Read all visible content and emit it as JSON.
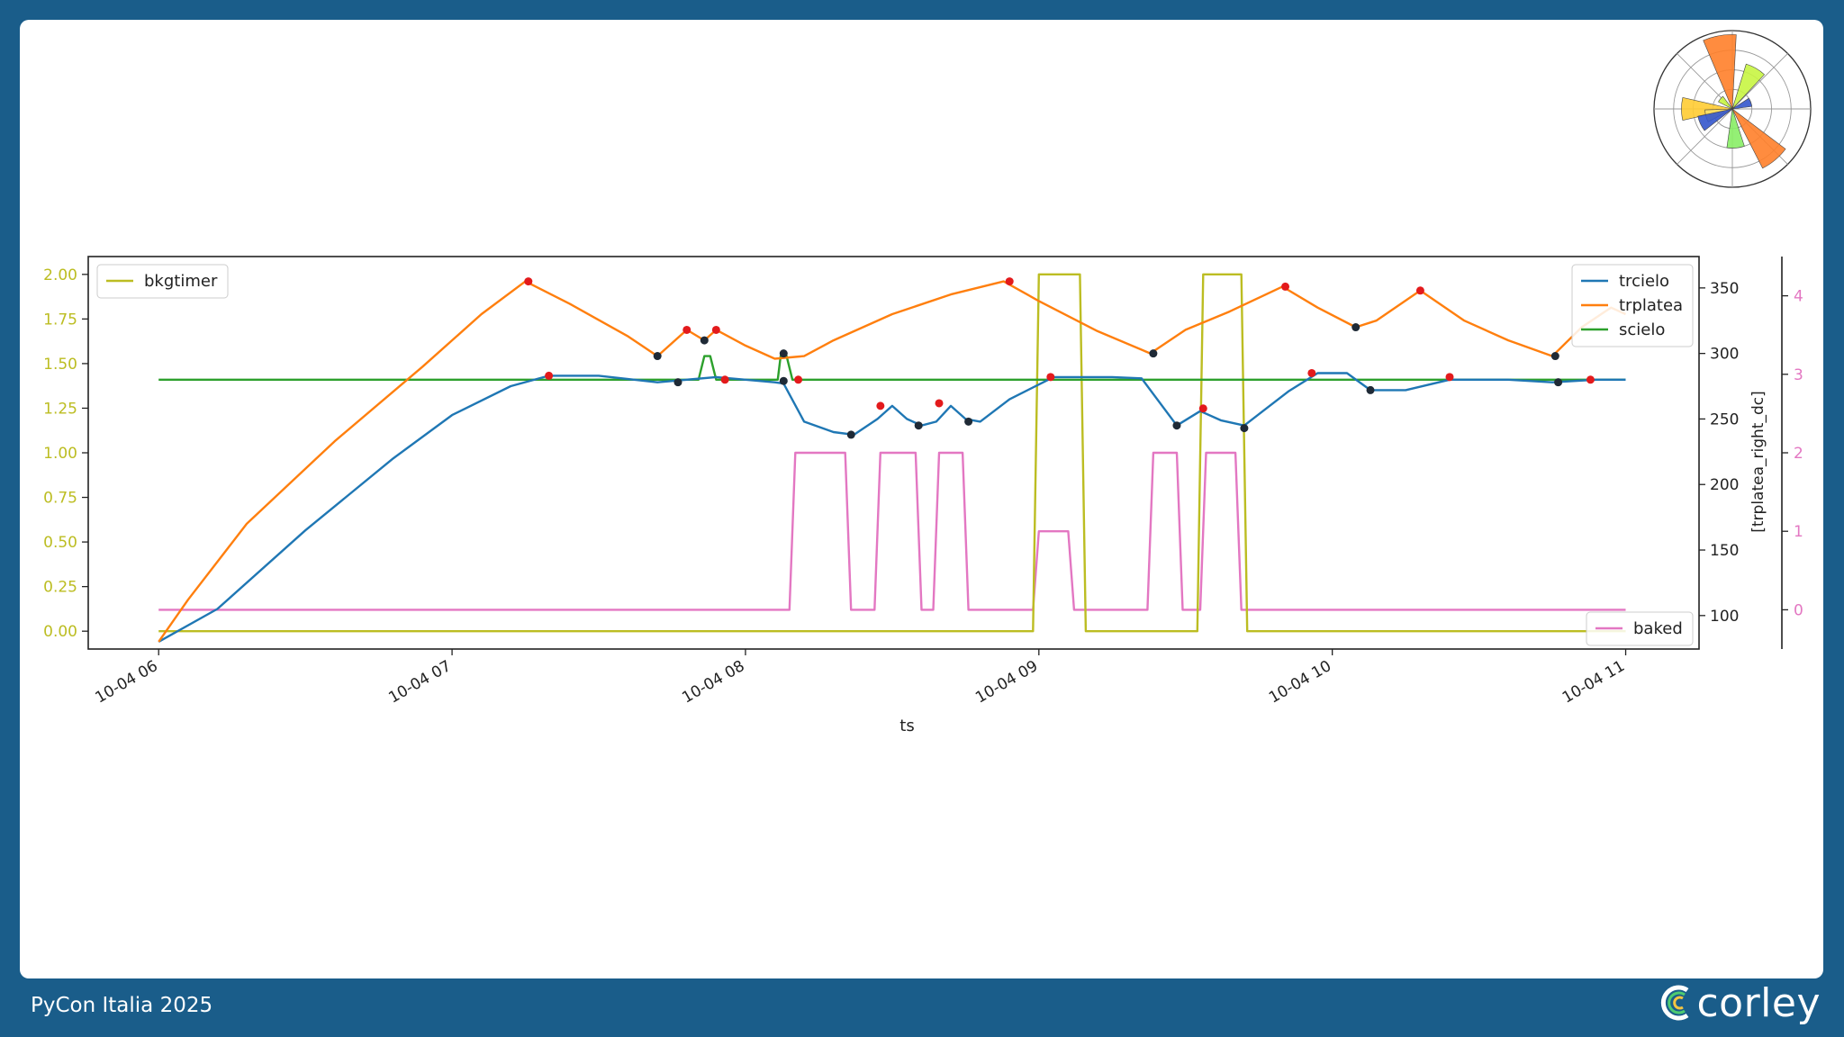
{
  "footer": {
    "event": "PyCon Italia 2025",
    "brand": "corley"
  },
  "colors": {
    "trcielo": "#1f77b4",
    "trplatea": "#ff7f0e",
    "scielo": "#2ca02c",
    "bkgtimer": "#bcbd22",
    "baked": "#e377c2",
    "peak": "#e31a1c",
    "trough": "#1f2a36",
    "background": "#1a5d8a"
  },
  "chart_data": [
    {
      "type": "line",
      "title": "",
      "xlabel": "ts",
      "x_ticks": [
        "10-04 06",
        "10-04 07",
        "10-04 08",
        "10-04 09",
        "10-04 10",
        "10-04 11"
      ],
      "x_range_hours": [
        5.76,
        11.25
      ],
      "axes": {
        "left": {
          "label": "",
          "ylim": [
            -0.1,
            2.1
          ],
          "ticks": [
            "0.00",
            "0.25",
            "0.50",
            "0.75",
            "1.00",
            "1.25",
            "1.50",
            "1.75",
            "2.00"
          ],
          "color": "#bcbd22"
        },
        "right1": {
          "label": "[trplatea_right_dc]",
          "ylim": [
            74.46,
            373.94
          ],
          "ticks": [
            "100",
            "150",
            "200",
            "250",
            "300",
            "350"
          ],
          "color": "#222222"
        },
        "right2": {
          "label": "",
          "ylim": [
            -0.5,
            4.5
          ],
          "ticks": [
            "0",
            "1",
            "2",
            "3",
            "4"
          ],
          "color": "#e377c2"
        }
      },
      "legends": [
        {
          "placement": "upper-left",
          "entries": [
            "bkgtimer"
          ]
        },
        {
          "placement": "upper-right",
          "entries": [
            "trcielo",
            "trplatea",
            "scielo"
          ]
        },
        {
          "placement": "lower-right",
          "entries": [
            "baked"
          ]
        }
      ],
      "series": [
        {
          "name": "trplatea",
          "axis": "right1",
          "color": "#ff7f0e",
          "x": [
            6.0,
            6.1,
            6.3,
            6.6,
            6.9,
            7.1,
            7.25,
            7.4,
            7.6,
            7.7,
            7.8,
            7.86,
            7.9,
            8.0,
            8.1,
            8.2,
            8.3,
            8.5,
            8.7,
            8.88,
            9.0,
            9.2,
            9.38,
            9.5,
            9.65,
            9.83,
            9.95,
            10.08,
            10.15,
            10.3,
            10.45,
            10.6,
            10.75,
            10.85,
            10.95,
            11.0
          ],
          "y": [
            80,
            112,
            170,
            233,
            290,
            330,
            355,
            338,
            313,
            298,
            318,
            310,
            318,
            306,
            296,
            298,
            310,
            330,
            345,
            355,
            340,
            317,
            300,
            318,
            332,
            351,
            335,
            320,
            325,
            348,
            325,
            310,
            298,
            320,
            335,
            330
          ]
        },
        {
          "name": "trcielo",
          "axis": "right1",
          "color": "#1f77b4",
          "x": [
            6.0,
            6.2,
            6.5,
            6.8,
            7.0,
            7.2,
            7.33,
            7.5,
            7.7,
            7.9,
            8.1,
            8.13,
            8.2,
            8.3,
            8.37,
            8.45,
            8.5,
            8.55,
            8.6,
            8.65,
            8.7,
            8.75,
            8.8,
            8.9,
            9.05,
            9.25,
            9.35,
            9.47,
            9.55,
            9.62,
            9.7,
            9.85,
            9.95,
            10.05,
            10.13,
            10.25,
            10.4,
            10.6,
            10.75,
            10.9,
            11.0
          ],
          "y": [
            80,
            105,
            165,
            220,
            253,
            275,
            283,
            283,
            278,
            282,
            278,
            277,
            248,
            240,
            238,
            250,
            260,
            250,
            245,
            248,
            260,
            250,
            248,
            265,
            282,
            282,
            281,
            245,
            256,
            249,
            245,
            271,
            285,
            285,
            272,
            272,
            280,
            280,
            278,
            280,
            280
          ]
        },
        {
          "name": "scielo",
          "axis": "right1",
          "color": "#2ca02c",
          "x": [
            6.0,
            7.84,
            7.86,
            7.88,
            7.9,
            8.11,
            8.12,
            8.14,
            8.16,
            11.0
          ],
          "y": [
            280,
            280,
            298,
            298,
            280,
            280,
            298,
            298,
            280,
            280
          ]
        },
        {
          "name": "bkgtimer",
          "axis": "left",
          "color": "#bcbd22",
          "x": [
            6.0,
            8.98,
            9.0,
            9.14,
            9.16,
            9.54,
            9.56,
            9.69,
            9.71,
            11.0
          ],
          "y": [
            0,
            0,
            2,
            2,
            0,
            0,
            2,
            2,
            0,
            0
          ]
        },
        {
          "name": "baked",
          "axis": "right2",
          "color": "#e377c2",
          "x": [
            6.0,
            8.15,
            8.17,
            8.34,
            8.36,
            8.44,
            8.46,
            8.58,
            8.6,
            8.64,
            8.66,
            8.74,
            8.76,
            8.98,
            9.0,
            9.1,
            9.12,
            9.37,
            9.39,
            9.47,
            9.49,
            9.55,
            9.57,
            9.67,
            9.69,
            11.0
          ],
          "y": [
            0,
            0,
            2,
            2,
            0,
            0,
            2,
            2,
            0,
            0,
            2,
            2,
            0,
            0,
            1,
            1,
            0,
            0,
            2,
            2,
            0,
            0,
            2,
            2,
            0,
            0
          ]
        }
      ],
      "peaks": {
        "axis": "right1",
        "x": [
          7.26,
          7.33,
          7.8,
          7.9,
          7.93,
          8.18,
          8.46,
          8.66,
          8.9,
          9.04,
          9.56,
          9.84,
          9.93,
          10.3,
          10.4,
          10.88
        ],
        "y": [
          355,
          283,
          318,
          318,
          280,
          280,
          260,
          262,
          355,
          282,
          258,
          351,
          285,
          348,
          282,
          280
        ]
      },
      "troughs": {
        "axis": "right1",
        "x": [
          7.7,
          7.77,
          7.86,
          8.13,
          8.13,
          8.36,
          8.59,
          8.76,
          9.39,
          9.47,
          9.7,
          10.08,
          10.13,
          10.76,
          10.77
        ],
        "y": [
          298,
          278,
          310,
          300,
          279,
          238,
          245,
          248,
          300,
          245,
          243,
          320,
          272,
          298,
          278
        ]
      }
    },
    {
      "type": "polar-bar",
      "title": "",
      "bars": [
        {
          "angle_deg": 100,
          "radius": 0.95,
          "color": "#ff7f2a"
        },
        {
          "angle_deg": 60,
          "radius": 0.6,
          "color": "#c8f542"
        },
        {
          "angle_deg": 180,
          "radius": 0.65,
          "color": "#ffcc33"
        },
        {
          "angle_deg": 195,
          "radius": 0.35,
          "color": "#ffe066"
        },
        {
          "angle_deg": 205,
          "radius": 0.45,
          "color": "#3355cc"
        },
        {
          "angle_deg": 275,
          "radius": 0.5,
          "color": "#88ee66"
        },
        {
          "angle_deg": 310,
          "radius": 0.85,
          "color": "#ff7f2a"
        },
        {
          "angle_deg": 20,
          "radius": 0.25,
          "color": "#3355cc"
        },
        {
          "angle_deg": 140,
          "radius": 0.2,
          "color": "#c8f542"
        }
      ]
    }
  ]
}
